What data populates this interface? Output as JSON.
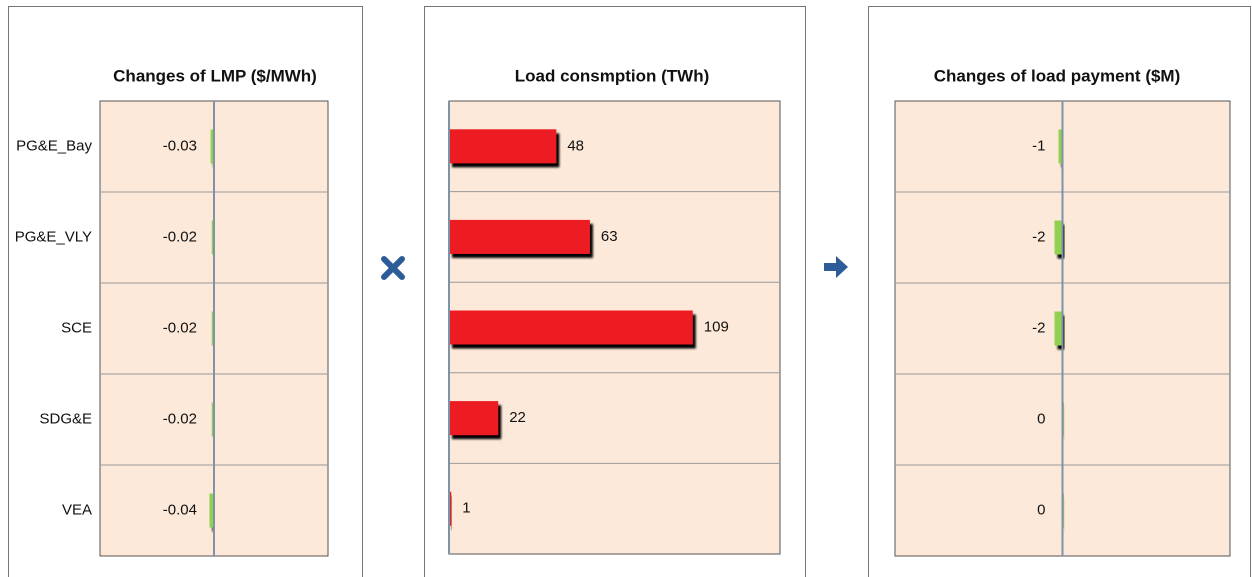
{
  "chart_data": [
    {
      "type": "barh",
      "title": "Changes of LMP ($/MWh)",
      "categories": [
        "PG&E_Bay",
        "PG&E_VLY",
        "SCE",
        "SDG&E",
        "VEA"
      ],
      "values": [
        -0.03,
        -0.02,
        -0.02,
        -0.02,
        -0.04
      ],
      "color": "#92d050",
      "xlim": [
        -1,
        1
      ]
    },
    {
      "type": "barh",
      "title": "Load consmption (TWh)",
      "values": [
        48,
        63,
        109,
        22,
        1
      ],
      "color": "#ed1c24",
      "xlim": [
        0,
        148
      ]
    },
    {
      "type": "barh",
      "title": "Changes of load payment ($M)",
      "values": [
        -1,
        -2,
        -2,
        0,
        0
      ],
      "color": "#92d050",
      "xlim": [
        -42,
        42
      ]
    }
  ]
}
